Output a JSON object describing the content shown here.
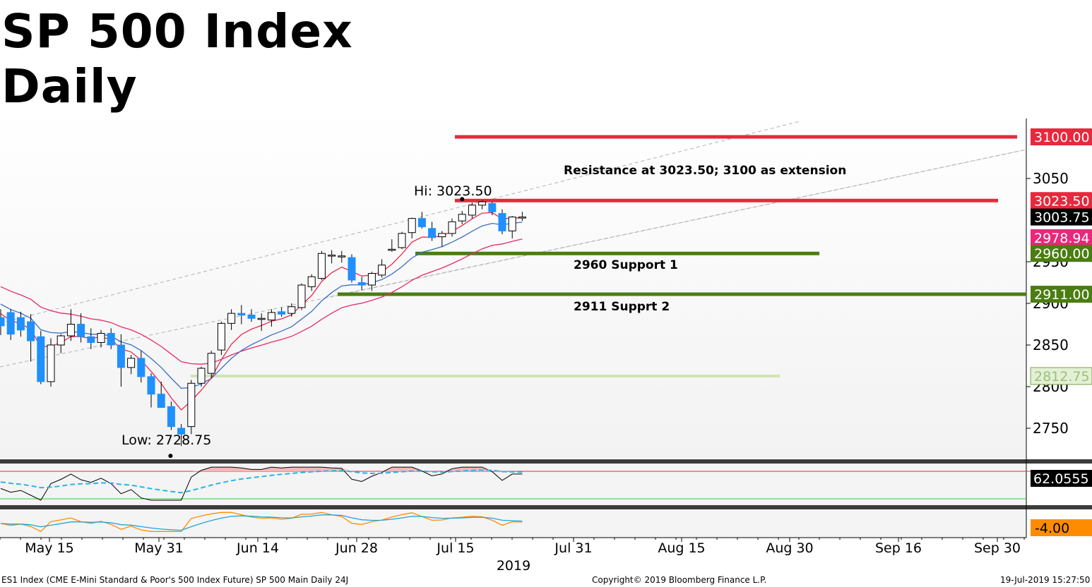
{
  "title": "SP 500 Index",
  "subtitle": "Daily",
  "footer": {
    "left": "ES1 Index (CME E-Mini Standard & Poor's 500 Index Future) SP 500 Main  Daily 24J",
    "center": "Copyright© 2019 Bloomberg Finance L.P.",
    "right": "19-Jul-2019 15:27:50"
  },
  "colors": {
    "up_candle": "#ffffff",
    "down_candle": "#1e90ff",
    "resistance": "#e8283c",
    "support": "#4a7d12",
    "support_light": "#cfe6b6",
    "ema_fast": "#e8284e",
    "ema_slow": "#3a6fc4",
    "ema_long": "#e8286e",
    "rsi_line": "#000000",
    "rsi_signal": "#2bb3e6",
    "osc_orange": "#ff8c00",
    "osc_blue": "#1ea5d9"
  },
  "chart_data": {
    "type": "candlestick",
    "year_label": "2019",
    "x_tick_labels": [
      "May 15",
      "May 31",
      "Jun 14",
      "Jun 28",
      "Jul 15",
      "Jul 31",
      "Aug 15",
      "Aug 30",
      "Sep 16",
      "Sep 30"
    ],
    "y_tick_labels": [
      3050,
      2950,
      2900,
      2850,
      2800,
      2750
    ],
    "ylim": [
      2713,
      3145
    ],
    "candles": [
      {
        "o": 2883,
        "h": 2893,
        "l": 2862,
        "c": 2873
      },
      {
        "o": 2889,
        "h": 2893,
        "l": 2856,
        "c": 2863
      },
      {
        "o": 2883,
        "h": 2890,
        "l": 2860,
        "c": 2868
      },
      {
        "o": 2878,
        "h": 2887,
        "l": 2830,
        "c": 2855
      },
      {
        "o": 2860,
        "h": 2867,
        "l": 2803,
        "c": 2806
      },
      {
        "o": 2806,
        "h": 2858,
        "l": 2800,
        "c": 2850
      },
      {
        "o": 2850,
        "h": 2863,
        "l": 2840,
        "c": 2861
      },
      {
        "o": 2861,
        "h": 2893,
        "l": 2855,
        "c": 2875
      },
      {
        "o": 2875,
        "h": 2888,
        "l": 2853,
        "c": 2860
      },
      {
        "o": 2860,
        "h": 2870,
        "l": 2845,
        "c": 2853
      },
      {
        "o": 2853,
        "h": 2868,
        "l": 2847,
        "c": 2864
      },
      {
        "o": 2864,
        "h": 2870,
        "l": 2845,
        "c": 2850
      },
      {
        "o": 2850,
        "h": 2863,
        "l": 2800,
        "c": 2823
      },
      {
        "o": 2823,
        "h": 2838,
        "l": 2815,
        "c": 2834
      },
      {
        "o": 2834,
        "h": 2843,
        "l": 2805,
        "c": 2812
      },
      {
        "o": 2812,
        "h": 2816,
        "l": 2775,
        "c": 2791
      },
      {
        "o": 2791,
        "h": 2806,
        "l": 2776,
        "c": 2775
      },
      {
        "o": 2776,
        "h": 2782,
        "l": 2748,
        "c": 2752
      },
      {
        "o": 2750,
        "h": 2755,
        "l": 2728.75,
        "c": 2743
      },
      {
        "o": 2752,
        "h": 2808,
        "l": 2743,
        "c": 2804
      },
      {
        "o": 2804,
        "h": 2824,
        "l": 2800,
        "c": 2822
      },
      {
        "o": 2816,
        "h": 2843,
        "l": 2810,
        "c": 2840
      },
      {
        "o": 2844,
        "h": 2878,
        "l": 2838,
        "c": 2876
      },
      {
        "o": 2876,
        "h": 2893,
        "l": 2868,
        "c": 2888
      },
      {
        "o": 2888,
        "h": 2898,
        "l": 2875,
        "c": 2886
      },
      {
        "o": 2886,
        "h": 2893,
        "l": 2878,
        "c": 2882
      },
      {
        "o": 2882,
        "h": 2888,
        "l": 2867,
        "c": 2882
      },
      {
        "o": 2880,
        "h": 2893,
        "l": 2872,
        "c": 2889
      },
      {
        "o": 2890,
        "h": 2895,
        "l": 2884,
        "c": 2887
      },
      {
        "o": 2888,
        "h": 2900,
        "l": 2884,
        "c": 2896
      },
      {
        "o": 2895,
        "h": 2924,
        "l": 2892,
        "c": 2922
      },
      {
        "o": 2920,
        "h": 2935,
        "l": 2915,
        "c": 2932
      },
      {
        "o": 2930,
        "h": 2963,
        "l": 2928,
        "c": 2960
      },
      {
        "o": 2958,
        "h": 2964,
        "l": 2948,
        "c": 2958
      },
      {
        "o": 2957,
        "h": 2963,
        "l": 2949,
        "c": 2957
      },
      {
        "o": 2955,
        "h": 2959,
        "l": 2925,
        "c": 2928
      },
      {
        "o": 2925,
        "h": 2932,
        "l": 2916,
        "c": 2922
      },
      {
        "o": 2922,
        "h": 2938,
        "l": 2915,
        "c": 2936
      },
      {
        "o": 2934,
        "h": 2953,
        "l": 2931,
        "c": 2946
      },
      {
        "o": 2964,
        "h": 2977,
        "l": 2962,
        "c": 2965
      },
      {
        "o": 2967,
        "h": 2986,
        "l": 2965,
        "c": 2984
      },
      {
        "o": 2985,
        "h": 3003,
        "l": 2978,
        "c": 3002
      },
      {
        "o": 3002,
        "h": 3010,
        "l": 2990,
        "c": 2992
      },
      {
        "o": 2990,
        "h": 2998,
        "l": 2975,
        "c": 2979
      },
      {
        "o": 2980,
        "h": 2987,
        "l": 2968,
        "c": 2984
      },
      {
        "o": 2984,
        "h": 3002,
        "l": 2980,
        "c": 2998
      },
      {
        "o": 2999,
        "h": 3011,
        "l": 2995,
        "c": 3007
      },
      {
        "o": 3006,
        "h": 3021,
        "l": 3002,
        "c": 3018
      },
      {
        "o": 3018,
        "h": 3023.5,
        "l": 3013,
        "c": 3022
      },
      {
        "o": 3020,
        "h": 3022,
        "l": 3006,
        "c": 3010
      },
      {
        "o": 3008,
        "h": 3013,
        "l": 2983,
        "c": 2987
      },
      {
        "o": 2987,
        "h": 3005,
        "l": 2978,
        "c": 3003.75
      },
      {
        "o": 3003,
        "h": 3010,
        "l": 2999,
        "c": 3003.75
      }
    ],
    "horizontal_levels": [
      {
        "value": 3100,
        "label": "3100.00",
        "role": "resistance"
      },
      {
        "value": 3023.5,
        "label": "3023.50",
        "role": "resistance"
      },
      {
        "value": 2960,
        "label": "2960.00",
        "role": "support"
      },
      {
        "value": 2911,
        "label": "2911.00",
        "role": "support"
      },
      {
        "value": 2812.75,
        "label": "2812.75",
        "role": "support-light"
      }
    ],
    "price_tags": [
      {
        "value": 3003.75,
        "label": "3003.75"
      },
      {
        "value": 2978.94,
        "label": "2978.94"
      }
    ],
    "annotations": {
      "resistance_note": "Resistance at 3023.50; 3100 as extension",
      "high": "Hi: 3023.50",
      "low": "Low: 2728.75",
      "support1": "2960 Support 1",
      "support2": "2911 Supprt 2"
    },
    "rsi": {
      "last_label": "62.0555",
      "upper": 70,
      "lower": 30
    },
    "oscillator": {
      "last_label": "-4.00"
    }
  }
}
